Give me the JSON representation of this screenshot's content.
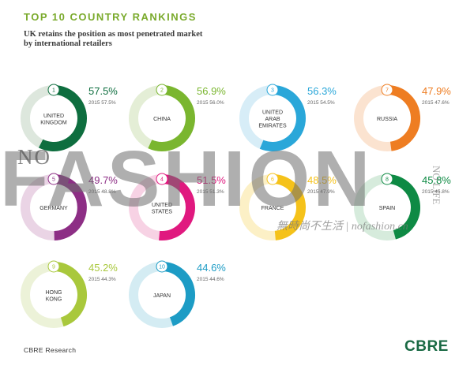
{
  "header": {
    "title": "TOP 10 COUNTRY RANKINGS",
    "subtitle_lines": [
      "UK retains the position as most penetrated market",
      "by international retailers"
    ]
  },
  "footer": {
    "source": "CBRE Research",
    "logo": "CBRE"
  },
  "watermark": {
    "no": "NO",
    "fashion": "FASHION",
    "side": "NO LIFE",
    "caption": "無時尚不生活 | nofashion.cn"
  },
  "chart_data": {
    "type": "donut",
    "title": "TOP 10 COUNTRY RANKINGS",
    "value_unit": "%",
    "items": [
      {
        "rank": "1",
        "label_lines": [
          "UNITED",
          "KINGDOM"
        ],
        "value": 57.5,
        "value_text": "57.5%",
        "prev_text": "2015 57.5%",
        "color": "#0e6e3f",
        "track": "#dde7dd"
      },
      {
        "rank": "2",
        "label_lines": [
          "CHINA"
        ],
        "value": 56.9,
        "value_text": "56.9%",
        "prev_text": "2015 56.0%",
        "color": "#7ab62f",
        "track": "#e4eed6"
      },
      {
        "rank": "3",
        "label_lines": [
          "UNITED",
          "ARAB",
          "EMIRATES"
        ],
        "value": 56.3,
        "value_text": "56.3%",
        "prev_text": "2015 54.5%",
        "color": "#2aa7d9",
        "track": "#d7edf7"
      },
      {
        "rank": "7",
        "label_lines": [
          "RUSSIA"
        ],
        "value": 47.9,
        "value_text": "47.9%",
        "prev_text": "2015 47.6%",
        "color": "#ee7d22",
        "track": "#fbe3d0"
      },
      {
        "rank": "5",
        "label_lines": [
          "GERMANY"
        ],
        "value": 49.7,
        "value_text": "49.7%",
        "prev_text": "2015 48.8%",
        "color": "#8d2e85",
        "track": "#ead4e5"
      },
      {
        "rank": "4",
        "label_lines": [
          "UNITED",
          "STATES"
        ],
        "value": 51.5,
        "value_text": "51.5%",
        "prev_text": "2015 51.3%",
        "color": "#e0197f",
        "track": "#f7d2e4"
      },
      {
        "rank": "6",
        "label_lines": [
          "FRANCE"
        ],
        "value": 48.5,
        "value_text": "48.5%",
        "prev_text": "2015 47.9%",
        "color": "#f5c21a",
        "track": "#fcf0c6"
      },
      {
        "rank": "8",
        "label_lines": [
          "SPAIN"
        ],
        "value": 45.8,
        "value_text": "45.8%",
        "prev_text": "2015 45.8%",
        "color": "#0e8a44",
        "track": "#d6ebdc"
      },
      {
        "rank": "9",
        "label_lines": [
          "HONG",
          "KONG"
        ],
        "value": 45.2,
        "value_text": "45.2%",
        "prev_text": "2015 44.3%",
        "color": "#a9c83c",
        "track": "#ecf2d8"
      },
      {
        "rank": "10",
        "label_lines": [
          "JAPAN"
        ],
        "value": 44.6,
        "value_text": "44.6%",
        "prev_text": "2015 44.6%",
        "color": "#1d9cc5",
        "track": "#d4ecf3"
      }
    ]
  }
}
